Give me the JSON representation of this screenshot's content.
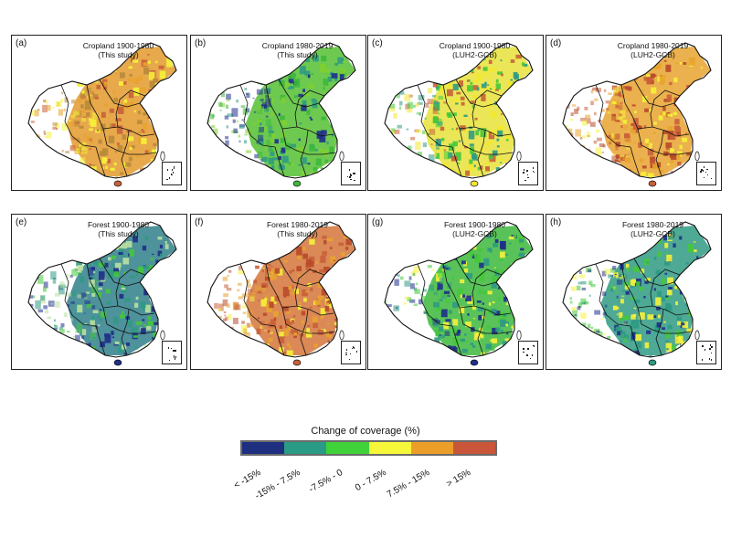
{
  "panels": [
    {
      "letter": "(a)",
      "title_line1": "Cropland 1900-1980",
      "title_line2": "(This study)",
      "palette": [
        "#c9603a",
        "#e8a32f",
        "#f5f23a",
        "#b88a3a"
      ],
      "base": "#e39a2b"
    },
    {
      "letter": "(b)",
      "title_line1": "Cropland 1980-2019",
      "title_line2": "(This study)",
      "palette": [
        "#3cb83c",
        "#2f9a83",
        "#7fd02f",
        "#1f2f8a"
      ],
      "base": "#55c033"
    },
    {
      "letter": "(c)",
      "title_line1": "Cropland 1900-1980",
      "title_line2": "(LUH2-GCB)",
      "palette": [
        "#f2e830",
        "#45c83a",
        "#c9603a",
        "#2f9a83"
      ],
      "base": "#e6e23a"
    },
    {
      "letter": "(d)",
      "title_line1": "Cropland 1980-2019",
      "title_line2": "(LUH2-GCB)",
      "palette": [
        "#c9603a",
        "#e8a32f",
        "#f5f23a",
        "#b84a2a"
      ],
      "base": "#e8a32f"
    },
    {
      "letter": "(e)",
      "title_line1": "Forest 1900-1980",
      "title_line2": "(This study)",
      "palette": [
        "#1f2f8a",
        "#2f9a83",
        "#45c83a",
        "#b8e0a0"
      ],
      "base": "#2f7f8a"
    },
    {
      "letter": "(f)",
      "title_line1": "Forest 1980-2019",
      "title_line2": "(This study)",
      "palette": [
        "#c9603a",
        "#e8a32f",
        "#f5f23a",
        "#b84a2a"
      ],
      "base": "#d4743a"
    },
    {
      "letter": "(g)",
      "title_line1": "Forest 1900-1980",
      "title_line2": "(LUH2-GCB)",
      "palette": [
        "#1f2f8a",
        "#45c83a",
        "#2f9a83",
        "#f5f23a"
      ],
      "base": "#3cb83c"
    },
    {
      "letter": "(h)",
      "title_line1": "Forest 1980-2019",
      "title_line2": "(LUH2-GCB)",
      "palette": [
        "#2f9a83",
        "#45c83a",
        "#1f2f8a",
        "#f5f23a"
      ],
      "base": "#2f9a83"
    }
  ],
  "legend": {
    "title": "Change of coverage (%)",
    "classes": [
      {
        "label": "< -15%",
        "color": "#1f2f7f"
      },
      {
        "label": "-15% - 7.5%",
        "color": "#2a9b85"
      },
      {
        "label": "-7.5% - 0",
        "color": "#3fd23a"
      },
      {
        "label": "0 - 7.5%",
        "color": "#f7f73a"
      },
      {
        "label": "7.5% - 15%",
        "color": "#ec9f28"
      },
      {
        "label": "> 15%",
        "color": "#c9553a"
      }
    ]
  }
}
